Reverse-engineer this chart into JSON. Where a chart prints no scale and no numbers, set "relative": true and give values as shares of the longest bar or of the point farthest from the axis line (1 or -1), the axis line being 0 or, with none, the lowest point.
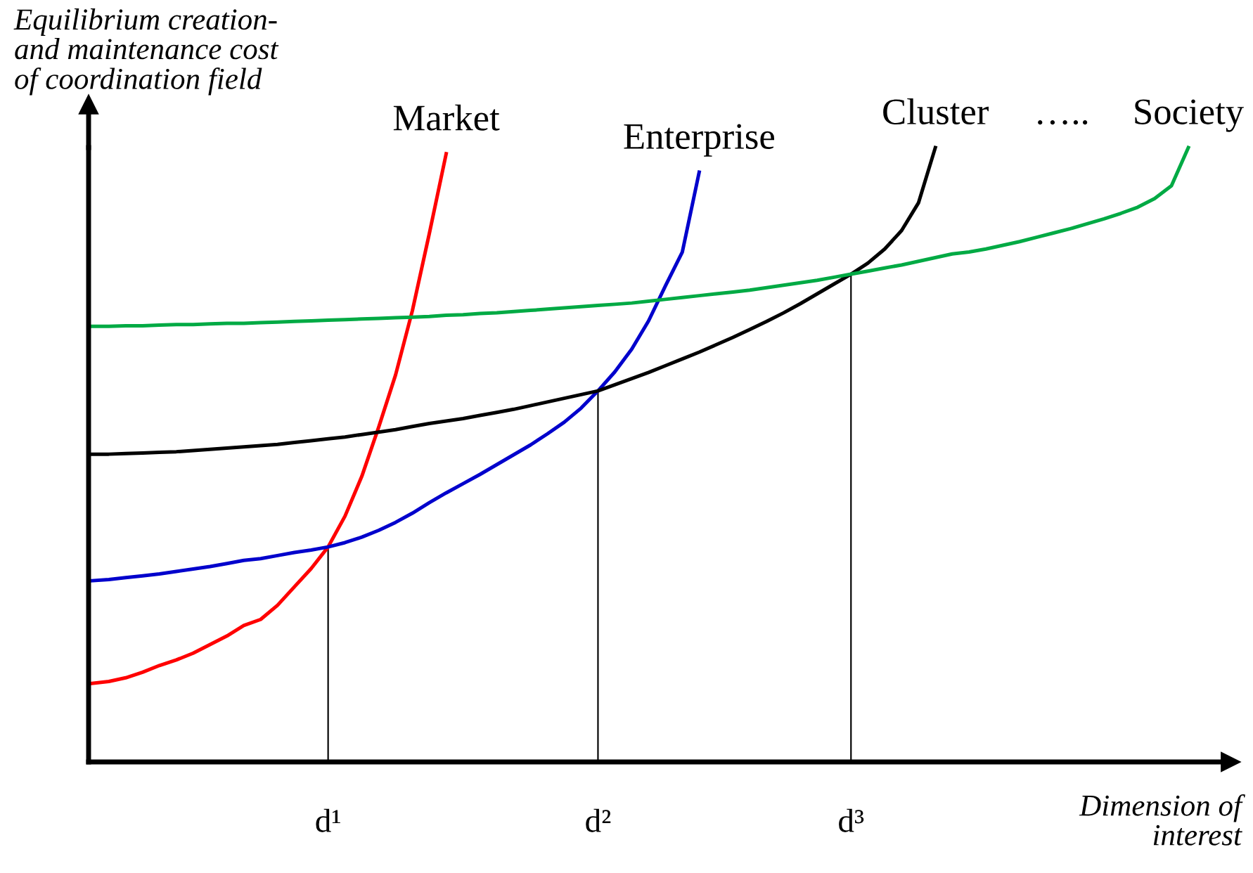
{
  "chart_data": {
    "type": "line",
    "relative": true,
    "ylabel": "Equilibrium creation-\nand maintenance cost\nof coordination field",
    "xlabel": "Dimension of\ninterest",
    "marker": "none",
    "line_style": "solid",
    "annotations": [
      "….."
    ],
    "categories": [
      null,
      null,
      null,
      null,
      null,
      null,
      null,
      null,
      null,
      null,
      null,
      null,
      null,
      null,
      "d¹",
      null,
      null,
      null,
      null,
      null,
      null,
      null,
      null,
      null,
      null,
      null,
      null,
      null,
      null,
      null,
      "d²",
      null,
      null,
      null,
      null,
      null,
      null,
      null,
      null,
      null,
      null,
      null,
      null,
      null,
      null,
      "d³",
      null,
      null,
      null,
      null,
      null,
      null,
      null,
      null,
      null,
      null,
      null,
      null,
      null,
      null,
      null,
      null,
      null,
      null,
      null,
      null,
      null
    ],
    "series": [
      {
        "name": "Market",
        "color": "#ff0000",
        "values": [
          0.128,
          0.131,
          0.137,
          0.146,
          0.157,
          0.166,
          0.177,
          0.191,
          0.205,
          0.222,
          0.232,
          0.255,
          0.285,
          0.315,
          0.35,
          0.4,
          0.465,
          0.545,
          0.63,
          0.735,
          0.86,
          0.99,
          null,
          null,
          null,
          null,
          null,
          null,
          null,
          null,
          null,
          null,
          null,
          null,
          null,
          null,
          null,
          null,
          null,
          null,
          null,
          null,
          null,
          null,
          null,
          null,
          null,
          null,
          null,
          null,
          null,
          null,
          null,
          null,
          null,
          null,
          null,
          null,
          null,
          null,
          null,
          null,
          null,
          null,
          null,
          null,
          null
        ]
      },
      {
        "name": "Enterprise",
        "color": "#0000cc",
        "values": [
          0.295,
          0.297,
          0.3,
          0.303,
          0.306,
          0.31,
          0.314,
          0.318,
          0.323,
          0.328,
          0.331,
          0.336,
          0.341,
          0.345,
          0.35,
          0.357,
          0.366,
          0.377,
          0.39,
          0.405,
          0.422,
          0.438,
          0.453,
          0.468,
          0.484,
          0.5,
          0.516,
          0.534,
          0.553,
          0.576,
          0.604,
          0.635,
          0.672,
          0.718,
          0.775,
          0.83,
          0.96,
          null,
          null,
          null,
          null,
          null,
          null,
          null,
          null,
          null,
          null,
          null,
          null,
          null,
          null,
          null,
          null,
          null,
          null,
          null,
          null,
          null,
          null,
          null,
          null,
          null,
          null,
          null,
          null,
          null,
          null
        ]
      },
      {
        "name": "Cluster",
        "color": "#000000",
        "values": [
          0.501,
          0.501,
          0.502,
          0.503,
          0.504,
          0.505,
          0.507,
          0.509,
          0.511,
          0.513,
          0.515,
          0.517,
          0.52,
          0.523,
          0.526,
          0.529,
          0.533,
          0.537,
          0.541,
          0.546,
          0.551,
          0.555,
          0.559,
          0.564,
          0.569,
          0.574,
          0.58,
          0.586,
          0.592,
          0.598,
          0.604,
          0.614,
          0.624,
          0.634,
          0.645,
          0.656,
          0.667,
          0.679,
          0.691,
          0.704,
          0.717,
          0.731,
          0.746,
          0.762,
          0.778,
          0.794,
          0.812,
          0.835,
          0.865,
          0.91,
          1.0,
          null,
          null,
          null,
          null,
          null,
          null,
          null,
          null,
          null,
          null,
          null,
          null,
          null,
          null,
          null,
          null
        ]
      },
      {
        "name": "Society",
        "color": "#00aa44",
        "values": [
          0.709,
          0.709,
          0.71,
          0.71,
          0.711,
          0.712,
          0.712,
          0.713,
          0.714,
          0.714,
          0.715,
          0.716,
          0.717,
          0.718,
          0.719,
          0.72,
          0.721,
          0.722,
          0.723,
          0.724,
          0.725,
          0.727,
          0.728,
          0.73,
          0.731,
          0.733,
          0.735,
          0.737,
          0.739,
          0.741,
          0.743,
          0.745,
          0.747,
          0.75,
          0.753,
          0.756,
          0.759,
          0.762,
          0.765,
          0.768,
          0.772,
          0.776,
          0.78,
          0.784,
          0.789,
          0.794,
          0.799,
          0.804,
          0.809,
          0.815,
          0.821,
          0.827,
          0.83,
          0.835,
          0.841,
          0.847,
          0.854,
          0.861,
          0.868,
          0.876,
          0.884,
          0.893,
          0.903,
          0.917,
          0.938,
          1.0,
          null
        ]
      },
      {
        "type": "bar",
        "color": "#000000",
        "values": [
          null,
          null,
          null,
          null,
          null,
          null,
          null,
          null,
          null,
          null,
          null,
          null,
          null,
          null,
          0.35,
          null,
          null,
          null,
          null,
          null,
          null,
          null,
          null,
          null,
          null,
          null,
          null,
          null,
          null,
          null,
          0.604,
          null,
          null,
          null,
          null,
          null,
          null,
          null,
          null,
          null,
          null,
          null,
          null,
          null,
          null,
          0.794,
          null,
          null,
          null,
          null,
          null,
          null,
          null,
          null,
          null,
          null,
          null,
          null,
          null,
          null,
          null,
          null,
          null,
          null,
          null,
          null,
          null
        ]
      }
    ]
  }
}
